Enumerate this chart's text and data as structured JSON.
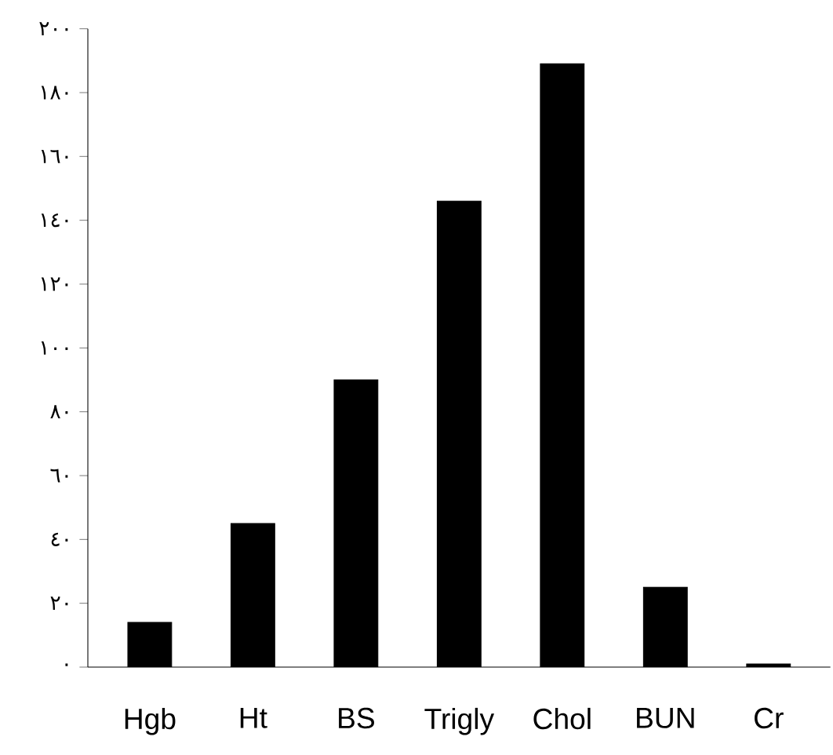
{
  "chart_data": {
    "type": "bar",
    "categories": [
      "Hgb",
      "Ht",
      "BS",
      "Trigly",
      "Chol",
      "BUN",
      "Cr"
    ],
    "values": [
      14,
      45,
      90,
      146,
      189,
      25,
      1
    ],
    "color": "#000000",
    "ylim": [
      0,
      200
    ],
    "yticks": [
      {
        "value": 0,
        "label": "٠"
      },
      {
        "value": 20,
        "label": "٢٠"
      },
      {
        "value": 40,
        "label": "٤٠"
      },
      {
        "value": 60,
        "label": "٦٠"
      },
      {
        "value": 80,
        "label": "٨٠"
      },
      {
        "value": 100,
        "label": "١٠٠"
      },
      {
        "value": 120,
        "label": "١٢٠"
      },
      {
        "value": 140,
        "label": "١٤٠"
      },
      {
        "value": 160,
        "label": "١٦٠"
      },
      {
        "value": 180,
        "label": "١٨٠"
      },
      {
        "value": 200,
        "label": "٢٠٠"
      }
    ],
    "grid": false
  }
}
